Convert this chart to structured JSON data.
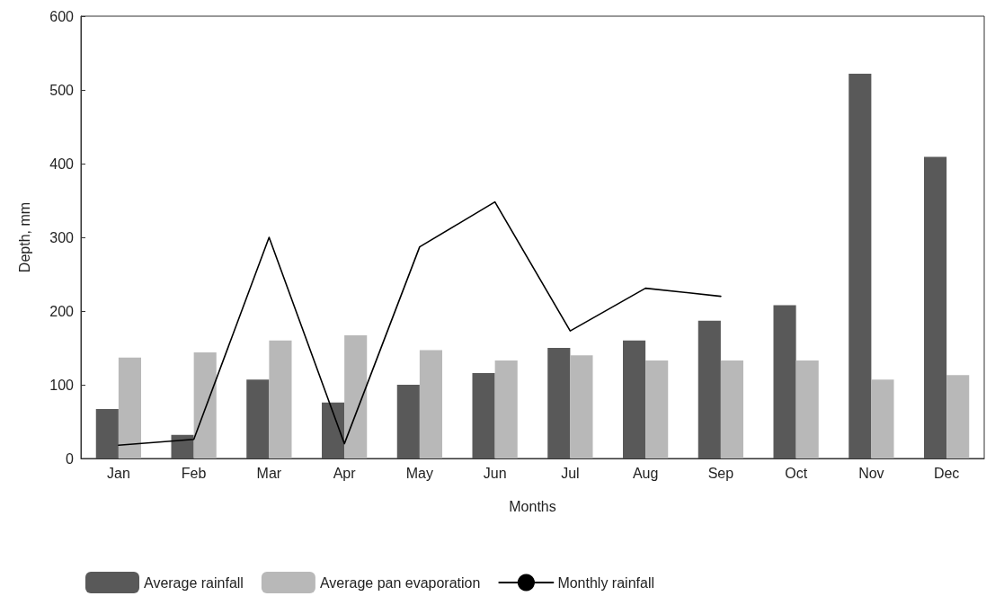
{
  "chart_data": {
    "type": "bar",
    "xlabel": "Months",
    "ylabel": "Depth, mm",
    "categories": [
      "Jan",
      "Feb",
      "Mar",
      "Apr",
      "May",
      "Jun",
      "Jul",
      "Aug",
      "Sep",
      "Oct",
      "Nov",
      "Dec"
    ],
    "series": [
      {
        "name": "Average rainfall",
        "color": "#595959",
        "values": [
          67,
          32,
          107,
          76,
          100,
          116,
          150,
          160,
          187,
          208,
          522,
          409
        ]
      },
      {
        "name": "Average pan evaporation",
        "color": "#b8b8b8",
        "values": [
          137,
          144,
          160,
          167,
          147,
          133,
          140,
          133,
          133,
          133,
          107,
          113
        ]
      },
      {
        "name": "Monthly rainfall",
        "type": "line",
        "color": "#000000",
        "values": [
          18,
          26,
          300,
          20,
          287,
          348,
          173,
          231,
          220,
          null,
          null,
          null
        ]
      }
    ],
    "ylim": [
      0,
      600
    ],
    "yticks": [
      0,
      100,
      200,
      300,
      400,
      500,
      600
    ],
    "grid": false,
    "legend": "bottom",
    "marker": "none",
    "line_style": "solid"
  }
}
